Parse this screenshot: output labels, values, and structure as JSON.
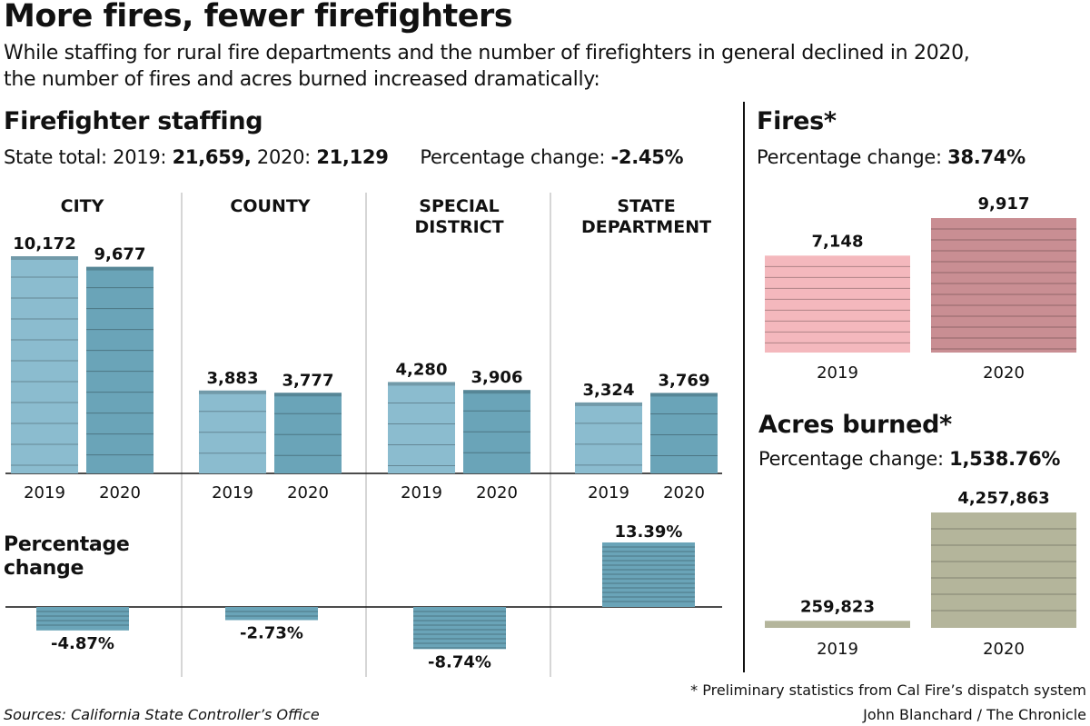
{
  "headline": "More fires, fewer firefighters",
  "dek_line1": "While staffing for rural fire departments and the number of firefighters in general declined in 2020,",
  "dek_line2": "the number of fires and acres burned increased dramatically:",
  "staffing": {
    "title": "Firefighter staffing",
    "state_total_label": "State total:",
    "year_2019_label": "2019:",
    "total_2019": "21,659,",
    "year_2020_label": "2020:",
    "total_2020": "21,129",
    "pct_label": "Percentage change:",
    "pct_value": "-2.45%"
  },
  "fires_panel": {
    "title": "Fires*",
    "pct_label": "Percentage change:",
    "pct_value": "38.74%"
  },
  "acres_panel": {
    "title": "Acres burned*",
    "pct_label": "Percentage change:",
    "pct_value": "1,538.76%"
  },
  "pct_change_title_line1": "Percentage",
  "pct_change_title_line2": "change",
  "footnote": "* Preliminary statistics from Cal Fire’s dispatch system",
  "credit": "John Blanchard / The Chronicle",
  "sources": "Sources: California State Controller’s Office",
  "colors": {
    "bar_2019": "#8bbccf",
    "bar_2020": "#6aa4b8",
    "fires_2019": "#f4b8bd",
    "fires_2020": "#c98e93",
    "acres": "#b4b59b",
    "pct_bar": "#6aa4b8"
  },
  "chart_data": [
    {
      "type": "bar",
      "categories": [
        "CITY",
        "COUNTY",
        "SPECIAL DISTRICT",
        "STATE DEPARTMENT"
      ],
      "x": [
        "2019",
        "2020"
      ],
      "series": [
        {
          "name": "2019",
          "values": [
            10172,
            3883,
            4280,
            3324
          ],
          "labels": [
            "10,172",
            "3,883",
            "4,280",
            "3,324"
          ]
        },
        {
          "name": "2020",
          "values": [
            9677,
            3777,
            3906,
            3769
          ],
          "labels": [
            "9,677",
            "3,777",
            "3,906",
            "3,769"
          ]
        }
      ],
      "ylim": [
        0,
        10500
      ]
    },
    {
      "type": "bar",
      "categories": [
        "CITY",
        "COUNTY",
        "SPECIAL DISTRICT",
        "STATE DEPARTMENT"
      ],
      "values": [
        -4.87,
        -2.73,
        -8.74,
        13.39
      ],
      "labels": [
        "-4.87%",
        "-2.73%",
        "-8.74%",
        "13.39%"
      ]
    },
    {
      "type": "bar",
      "categories": [
        "2019",
        "2020"
      ],
      "values": [
        7148,
        9917
      ],
      "labels": [
        "7,148",
        "9,917"
      ],
      "ylim": [
        0,
        9917
      ]
    },
    {
      "type": "bar",
      "categories": [
        "2019",
        "2020"
      ],
      "values": [
        259823,
        4257863
      ],
      "labels": [
        "259,823",
        "4,257,863"
      ],
      "ylim": [
        0,
        4257863
      ]
    }
  ]
}
